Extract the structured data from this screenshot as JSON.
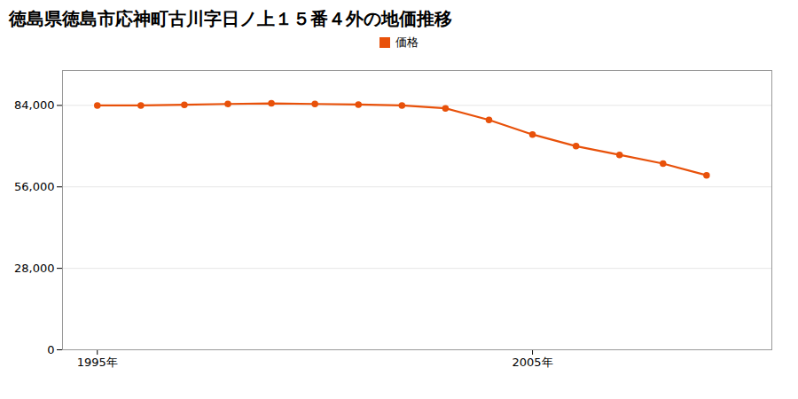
{
  "chart_data": {
    "type": "line",
    "title": "徳島県徳島市応神町古川字日ノ上１５番４外の地価推移",
    "x": [
      1995,
      1996,
      1997,
      1998,
      1999,
      2000,
      2001,
      2002,
      2003,
      2004,
      2005,
      2006,
      2007,
      2008,
      2009
    ],
    "series": [
      {
        "name": "価格",
        "color": "#E8510A",
        "marker": "circle",
        "values": [
          84000,
          84000,
          84200,
          84500,
          84700,
          84500,
          84300,
          84000,
          83000,
          79000,
          74000,
          70000,
          67000,
          64000,
          60000
        ]
      }
    ],
    "xlim": [
      1994.2,
      2010.5
    ],
    "xticks": [
      {
        "value": 1995,
        "label": "1995年"
      },
      {
        "value": 2005,
        "label": "2005年"
      }
    ],
    "ylim": [
      0,
      96000
    ],
    "yticks": [
      0,
      {
        "value": 28000,
        "label": "28,000"
      },
      {
        "value": 56000,
        "label": "56,000"
      },
      {
        "value": 84000,
        "label": "84,000"
      }
    ],
    "grid": "y",
    "legend": "top"
  }
}
